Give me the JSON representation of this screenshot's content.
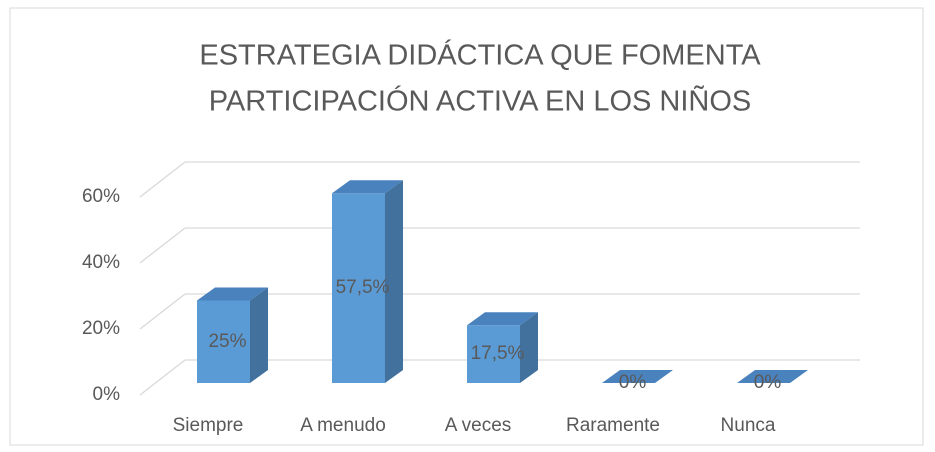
{
  "chart_data": {
    "type": "bar3d",
    "title": [
      "ESTRATEGIA DIDÁCTICA QUE FOMENTA",
      "PARTICIPACIÓN ACTIVA EN LOS NIÑOS"
    ],
    "categories": [
      "Siempre",
      "A menudo",
      "A veces",
      "Raramente",
      "Nunca"
    ],
    "values": [
      25,
      57.5,
      17.5,
      0,
      0
    ],
    "value_labels": [
      "25%",
      "57,5%",
      "17,5%",
      "0%",
      "0%"
    ],
    "color": "#5b9bd5",
    "ylim": [
      0,
      60
    ],
    "yticks": [
      {
        "value": 0,
        "label": "0%"
      },
      {
        "value": 20,
        "label": "20%"
      },
      {
        "value": 40,
        "label": "40%"
      },
      {
        "value": 60,
        "label": "60%"
      }
    ],
    "grid": true
  }
}
